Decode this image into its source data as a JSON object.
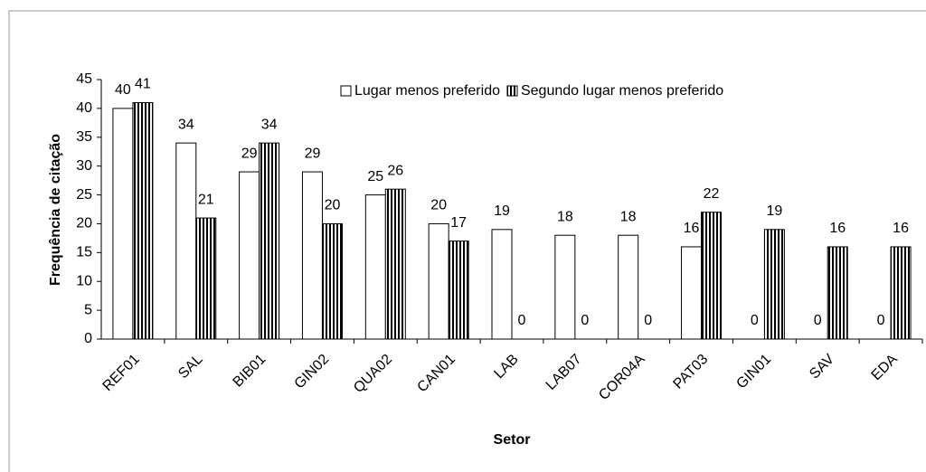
{
  "chart_data": {
    "type": "bar",
    "ylabel": "Frequência de citação",
    "xlabel": "Setor",
    "categories": [
      "REF01",
      "SAL",
      "BIB01",
      "GIN02",
      "QUA02",
      "CAN01",
      "LAB",
      "LAB07",
      "COR04A",
      "PAT03",
      "GIN01",
      "SAV",
      "EDA"
    ],
    "series": [
      {
        "name": "Lugar menos preferido",
        "color": "#ffffff",
        "values": [
          40,
          34,
          29,
          29,
          25,
          20,
          19,
          18,
          18,
          16,
          0,
          0,
          0
        ]
      },
      {
        "name": "Segundo lugar menos preferido",
        "color": "#000000",
        "hatch": "vertical",
        "values": [
          41,
          21,
          34,
          20,
          26,
          17,
          0,
          0,
          0,
          22,
          19,
          16,
          16
        ]
      }
    ],
    "ylim": [
      0,
      45
    ],
    "yticks": [
      0,
      5,
      10,
      15,
      20,
      25,
      30,
      35,
      40,
      45
    ],
    "legend": "top"
  }
}
